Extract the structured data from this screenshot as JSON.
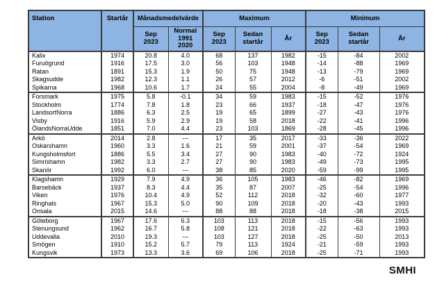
{
  "logo_text": "SMHI",
  "colors": {
    "header_bg": "#8DB4E2",
    "border": "#3a3a3a",
    "background": "#ffffff",
    "text": "#000000"
  },
  "table": {
    "header": {
      "station": "Station",
      "startyear": "Startår",
      "monthly_mean": "Månadsmedelvärde",
      "maximum": "Maximum",
      "minimum": "Minimum",
      "sub": {
        "mean_sep": "Sep\n2023",
        "mean_normal": "Normal\n1991 2020",
        "max_sep": "Sep\n2023",
        "max_since": "Sedan\nstartår",
        "max_year": "År",
        "min_sep": "Sep\n2023",
        "min_since": "Sedan\nstartår",
        "min_year": "År"
      }
    },
    "groups": [
      {
        "rows": [
          {
            "station": "Kalix",
            "startyear": "1974",
            "values": [
              "20.8",
              "4.0",
              "68",
              "137",
              "1982",
              "-15",
              "-84",
              "2002"
            ]
          },
          {
            "station": "Furuögrund",
            "startyear": "1916",
            "values": [
              "17.5",
              "3.0",
              "56",
              "103",
              "1948",
              "-14",
              "-88",
              "1969"
            ]
          },
          {
            "station": "Ratan",
            "startyear": "1891",
            "values": [
              "15.3",
              "1.9",
              "50",
              "75",
              "1948",
              "-13",
              "-79",
              "1969"
            ]
          },
          {
            "station": "Skagsudde",
            "startyear": "1982",
            "values": [
              "12.3",
              "1.1",
              "26",
              "57",
              "2012",
              "-6",
              "-51",
              "2002"
            ]
          },
          {
            "station": "Spikarna",
            "startyear": "1968",
            "values": [
              "10.6",
              "1.7",
              "24",
              "55",
              "2004",
              "-8",
              "-49",
              "1969"
            ]
          }
        ]
      },
      {
        "rows": [
          {
            "station": "Forsmark",
            "startyear": "1975",
            "values": [
              "5.8",
              "-0.1",
              "34",
              "59",
              "1983",
              "-15",
              "-52",
              "1976"
            ]
          },
          {
            "station": "Stockholm",
            "startyear": "1774",
            "values": [
              "7.8",
              "1.8",
              "23",
              "66",
              "1937",
              "-18",
              "-47",
              "1976"
            ]
          },
          {
            "station": "LandsortNorra",
            "startyear": "1886",
            "values": [
              "6.3",
              "2.5",
              "19",
              "65",
              "1899",
              "-27",
              "-43",
              "1976"
            ]
          },
          {
            "station": "Visby",
            "startyear": "1916",
            "values": [
              "5.9",
              "2.9",
              "19",
              "58",
              "2018",
              "-22",
              "-41",
              "1996"
            ]
          },
          {
            "station": "ÖlandsNorraUdde",
            "startyear": "1851",
            "values": [
              "7.0",
              "4.4",
              "23",
              "103",
              "1869",
              "-28",
              "-45",
              "1996"
            ]
          }
        ]
      },
      {
        "rows": [
          {
            "station": "Arkö",
            "startyear": "2014",
            "values": [
              "2.8",
              "---",
              "17",
              "35",
              "2017",
              "-33",
              "-36",
              "2022"
            ]
          },
          {
            "station": "Oskarshamn",
            "startyear": "1960",
            "values": [
              "3.3",
              "1.6",
              "21",
              "59",
              "2001",
              "-37",
              "-54",
              "1969"
            ]
          },
          {
            "station": "Kungsholmsfort",
            "startyear": "1886",
            "values": [
              "5.5",
              "3.4",
              "27",
              "90",
              "1983",
              "-40",
              "-72",
              "1924"
            ]
          },
          {
            "station": "Simrishamn",
            "startyear": "1982",
            "values": [
              "3.3",
              "2.7",
              "27",
              "90",
              "1983",
              "-49",
              "-73",
              "1995"
            ]
          },
          {
            "station": "Skanör",
            "startyear": "1992",
            "values": [
              "6.0",
              "---",
              "38",
              "85",
              "2020",
              "-59",
              "-99",
              "1995"
            ]
          }
        ]
      },
      {
        "rows": [
          {
            "station": "Klagshamn",
            "startyear": "1929",
            "values": [
              "7.9",
              "4.9",
              "36",
              "105",
              "1983",
              "-46",
              "-82",
              "1969"
            ]
          },
          {
            "station": "Barsebäck",
            "startyear": "1937",
            "values": [
              "8.3",
              "4.4",
              "35",
              "87",
              "2007",
              "-25",
              "-54",
              "1996"
            ]
          },
          {
            "station": "Viken",
            "startyear": "1976",
            "values": [
              "10.4",
              "4.9",
              "52",
              "112",
              "2018",
              "-32",
              "-60",
              "1977"
            ]
          },
          {
            "station": "Ringhals",
            "startyear": "1967",
            "values": [
              "15.3",
              "5.0",
              "90",
              "109",
              "2018",
              "-20",
              "-43",
              "1993"
            ]
          },
          {
            "station": "Onsala",
            "startyear": "2015",
            "values": [
              "14.6",
              "---",
              "88",
              "88",
              "2018",
              "-18",
              "-38",
              "2015"
            ]
          }
        ]
      },
      {
        "rows": [
          {
            "station": "Göteborg",
            "startyear": "1967",
            "values": [
              "17.6",
              "6.3",
              "103",
              "113",
              "2018",
              "-15",
              "-56",
              "1993"
            ]
          },
          {
            "station": "Stenungsund",
            "startyear": "1962",
            "values": [
              "16.7",
              "5.8",
              "108",
              "121",
              "2018",
              "-22",
              "-63",
              "1993"
            ]
          },
          {
            "station": "Uddevalla",
            "startyear": "2010",
            "values": [
              "19.3",
              "---",
              "103",
              "127",
              "2018",
              "-25",
              "-50",
              "2013"
            ]
          },
          {
            "station": "Smögen",
            "startyear": "1910",
            "values": [
              "15.2",
              "5.7",
              "79",
              "113",
              "1924",
              "-21",
              "-59",
              "1993"
            ]
          },
          {
            "station": "Kungsvik",
            "startyear": "1973",
            "values": [
              "13.3",
              "3.6",
              "69",
              "106",
              "2018",
              "-25",
              "-71",
              "1993"
            ]
          }
        ]
      }
    ]
  }
}
